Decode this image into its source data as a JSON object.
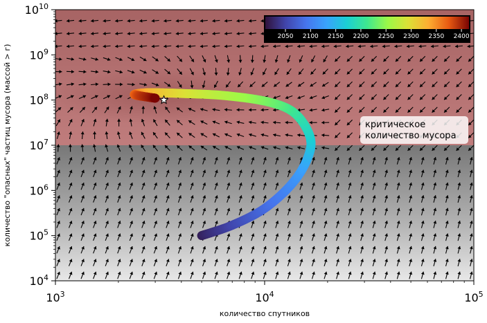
{
  "chart_data": {
    "type": "scatter",
    "xlabel": "количество спутников",
    "ylabel": "количество \"опасных\" частиц мусора (массой > г)",
    "x_scale": "log",
    "y_scale": "log",
    "xlim": [
      1000,
      100000
    ],
    "ylim": [
      10000,
      10000000000
    ],
    "x_ticks": [
      {
        "value": 1000,
        "base": "10",
        "exp": "3"
      },
      {
        "value": 10000,
        "base": "10",
        "exp": "4"
      },
      {
        "value": 100000,
        "base": "10",
        "exp": "5"
      }
    ],
    "y_ticks": [
      {
        "value": 10000,
        "base": "10",
        "exp": "4"
      },
      {
        "value": 100000,
        "base": "10",
        "exp": "5"
      },
      {
        "value": 1000000,
        "base": "10",
        "exp": "6"
      },
      {
        "value": 10000000,
        "base": "10",
        "exp": "7"
      },
      {
        "value": 100000000,
        "base": "10",
        "exp": "8"
      },
      {
        "value": 1000000000,
        "base": "10",
        "exp": "9"
      },
      {
        "value": 10000000000,
        "base": "10",
        "exp": "10"
      }
    ],
    "grid": false,
    "critical_region": {
      "y_min": 10000000,
      "y_max": 10000000000,
      "label_lines": [
        "критическое",
        "количество мусора"
      ],
      "color": "#f08080"
    },
    "trajectory": {
      "color_by": "year",
      "start_year": 2020,
      "end_year": 2415,
      "points": [
        {
          "x": 5000,
          "y": 100000
        },
        {
          "x": 7000,
          "y": 170000
        },
        {
          "x": 10000,
          "y": 400000
        },
        {
          "x": 13500,
          "y": 1400000
        },
        {
          "x": 16000,
          "y": 5000000
        },
        {
          "x": 16500,
          "y": 15000000
        },
        {
          "x": 14000,
          "y": 50000000
        },
        {
          "x": 10500,
          "y": 90000000
        },
        {
          "x": 6500,
          "y": 125000000
        },
        {
          "x": 4000,
          "y": 140000000
        },
        {
          "x": 2800,
          "y": 145000000
        },
        {
          "x": 2400,
          "y": 135000000
        },
        {
          "x": 2500,
          "y": 125000000
        },
        {
          "x": 3000,
          "y": 110000000
        }
      ]
    },
    "star_marker": {
      "x": 3300,
      "y": 100000000
    },
    "colorbar": {
      "min": 2010,
      "max": 2415,
      "tick_labels": [
        "2050",
        "2100",
        "2150",
        "2200",
        "2250",
        "2300",
        "2350",
        "2400"
      ],
      "tick_values": [
        2050,
        2100,
        2150,
        2200,
        2250,
        2300,
        2350,
        2400
      ],
      "colormap": "turbo"
    }
  }
}
